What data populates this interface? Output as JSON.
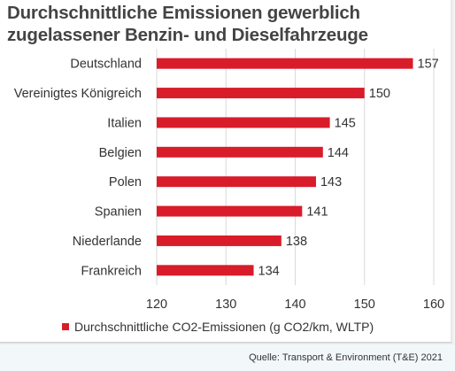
{
  "chart_data": {
    "type": "bar",
    "orientation": "horizontal",
    "title_lines": [
      "Durchschnittliche Emissionen gewerblich",
      "zugelassener Benzin- und Dieselfahrzeuge"
    ],
    "categories": [
      "Deutschland",
      "Vereinigtes Königreich",
      "Italien",
      "Belgien",
      "Polen",
      "Spanien",
      "Niederlande",
      "Frankreich"
    ],
    "series": [
      {
        "name": "Durchschnittliche CO2-Emissionen (g CO2/km, WLTP)",
        "values": [
          157,
          150,
          145,
          144,
          143,
          141,
          138,
          134
        ],
        "color": "#d91c2a"
      }
    ],
    "xlim": [
      120,
      160
    ],
    "x_ticks": [
      120,
      130,
      140,
      150,
      160
    ],
    "grid": true,
    "legend_position": "bottom",
    "data_labels": true
  },
  "source": "Quelle: Transport & Environment (T&E) 2021"
}
